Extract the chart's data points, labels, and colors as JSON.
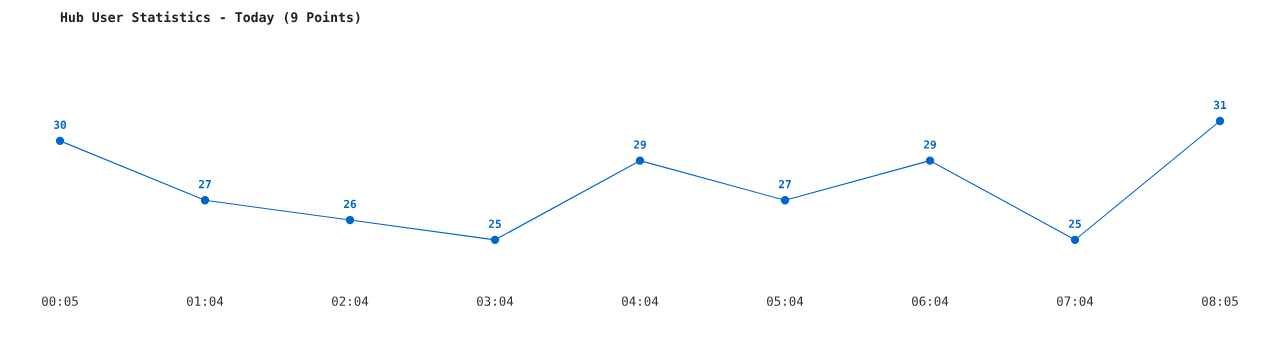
{
  "chart_data": {
    "type": "line",
    "title": "Hub User Statistics - Today (9 Points)",
    "categories": [
      "00:05",
      "01:04",
      "02:04",
      "03:04",
      "04:04",
      "05:04",
      "06:04",
      "07:04",
      "08:05"
    ],
    "series": [
      {
        "color": "#0066cc",
        "values": [
          30,
          27,
          26,
          25,
          29,
          27,
          29,
          25,
          31
        ]
      }
    ],
    "data_labels": true,
    "marker": "circle",
    "line_style": "solid",
    "grid": false,
    "legend": false,
    "tick_labels": "x"
  }
}
